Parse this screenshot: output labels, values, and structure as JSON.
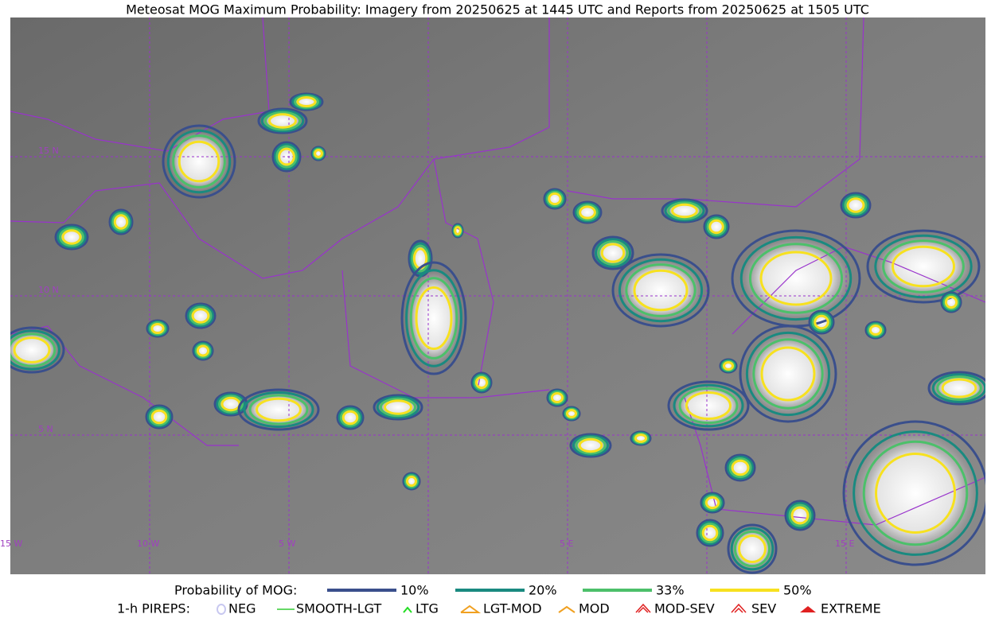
{
  "title": "Meteosat MOG Maximum Probability: Imagery from 20250625 at 1445 UTC and Reports from 20250625 at 1505 UTC",
  "map": {
    "lat_labels": [
      "15 N",
      "10 N",
      "5 N"
    ],
    "lon_labels": [
      "15 W",
      "10 W",
      "5 W",
      "5 E",
      "15 E"
    ]
  },
  "legend": {
    "probability": {
      "title": "Probability of MOG:",
      "items": [
        {
          "label": "10%",
          "color": "#3a4f8c"
        },
        {
          "label": "20%",
          "color": "#1a8a80"
        },
        {
          "label": "33%",
          "color": "#4cc06a"
        },
        {
          "label": "50%",
          "color": "#f7e11f"
        }
      ]
    },
    "pireps": {
      "title": "1-h PIREPS:",
      "items": [
        {
          "label": "NEG",
          "color": "#c8c8f0"
        },
        {
          "label": "SMOOTH-LGT",
          "color": "#33cc33"
        },
        {
          "label": "LTG",
          "color": "#22dd22"
        },
        {
          "label": "LGT-MOD",
          "color": "#f0a020"
        },
        {
          "label": "MOD",
          "color": "#f0a020"
        },
        {
          "label": "MOD-SEV",
          "color": "#e02020"
        },
        {
          "label": "SEV",
          "color": "#e02020"
        },
        {
          "label": "EXTREME",
          "color": "#e02020"
        }
      ]
    }
  }
}
